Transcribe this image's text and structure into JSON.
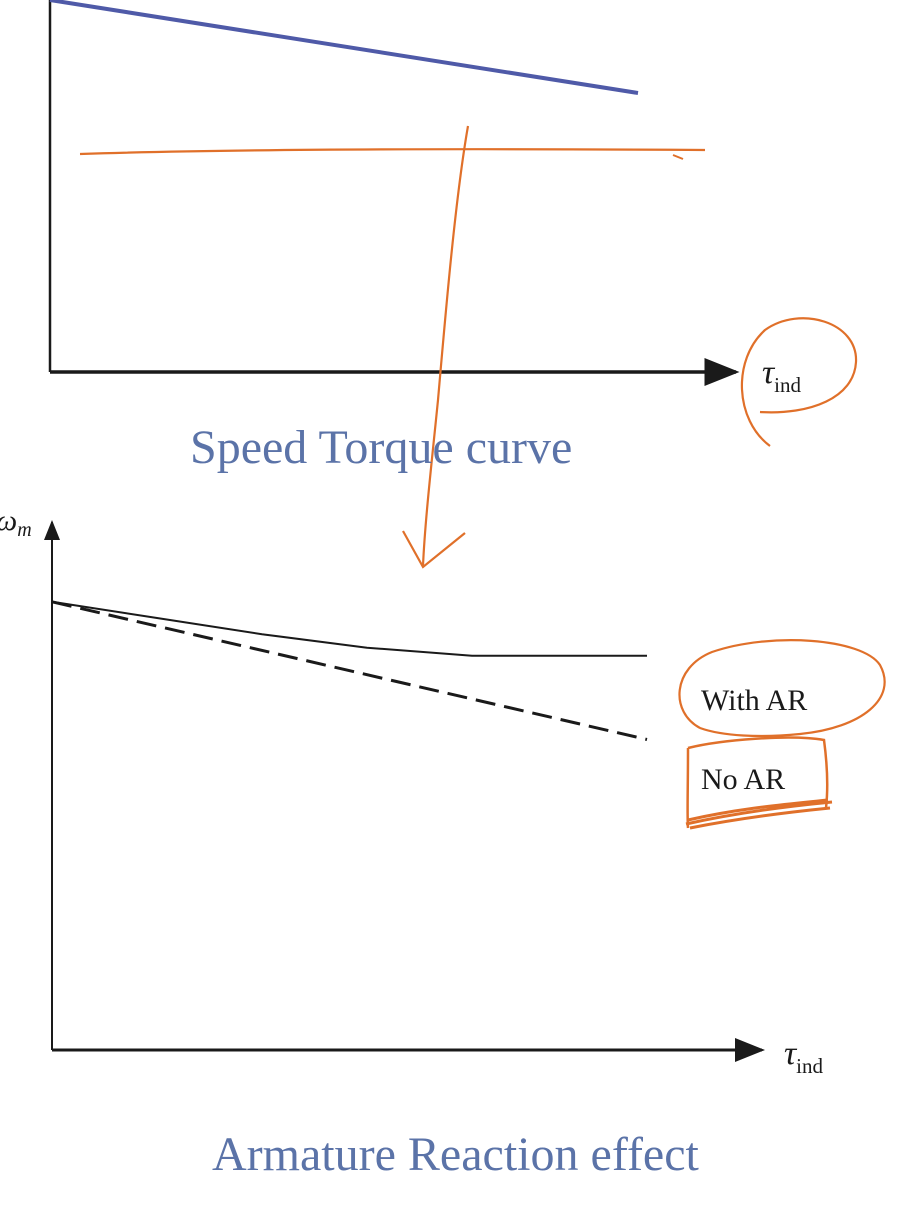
{
  "captions": {
    "top": "Speed Torque curve",
    "bottom": "Armature Reaction effect"
  },
  "colors": {
    "axis": "#1a1a1a",
    "speed_line": "#4f5aa8",
    "annotation": "#e0702a",
    "caption": "#5b73a8"
  },
  "chart_data": [
    {
      "type": "line",
      "title": "Speed Torque curve",
      "xlabel": "τ_ind",
      "xlabel_main": "τ",
      "xlabel_sub": "ind",
      "ylabel": "",
      "xlim": [
        0,
        1
      ],
      "ylim": [
        0,
        1
      ],
      "grid": false,
      "series": [
        {
          "x": [
            0,
            0.84
          ],
          "y": [
            1.0,
            0.75
          ],
          "style": "solid"
        }
      ],
      "annotations": [
        {
          "type": "handwritten-horizontal-line",
          "y": 0.6
        },
        {
          "type": "handwritten-circle",
          "target": "x-axis label"
        },
        {
          "type": "handwritten-arrow",
          "direction": "down",
          "target": "second chart"
        }
      ]
    },
    {
      "type": "line",
      "title": "Armature Reaction effect",
      "xlabel": "τ_ind",
      "xlabel_main": "τ",
      "xlabel_sub": "ind",
      "ylabel": "ω_m",
      "ylabel_main": "ω",
      "ylabel_sub": "m",
      "xlim": [
        0,
        1
      ],
      "ylim": [
        0,
        1
      ],
      "grid": false,
      "series": [
        {
          "name": "With AR",
          "x": [
            0,
            0.15,
            0.3,
            0.45,
            0.6,
            0.85
          ],
          "y": [
            0.83,
            0.8,
            0.77,
            0.745,
            0.73,
            0.73
          ],
          "style": "solid"
        },
        {
          "name": "No AR",
          "x": [
            0,
            0.85
          ],
          "y": [
            0.83,
            0.575
          ],
          "style": "dashed"
        }
      ],
      "annotations": [
        {
          "type": "handwritten-circle",
          "target": "With AR"
        },
        {
          "type": "handwritten-box",
          "target": "No AR"
        }
      ]
    }
  ]
}
